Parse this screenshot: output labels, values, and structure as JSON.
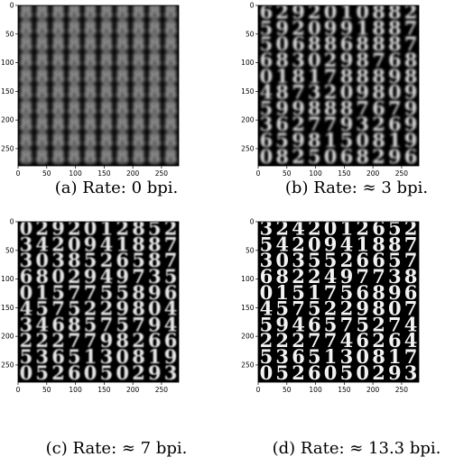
{
  "figure": {
    "axis_ticks_x": [
      "0",
      "50",
      "100",
      "150",
      "200",
      "250"
    ],
    "axis_ticks_y": [
      "0",
      "50",
      "100",
      "150",
      "200",
      "250"
    ],
    "panels": [
      {
        "caption": "(a) Rate: 0 bpi.",
        "blur": 2.4,
        "opacity": 0.85,
        "rows": [
          [
            "8",
            "8",
            "8",
            "8",
            "8",
            "8",
            "8",
            "8",
            "8",
            "8"
          ],
          [
            "8",
            "8",
            "8",
            "8",
            "8",
            "8",
            "8",
            "8",
            "8",
            "8"
          ],
          [
            "8",
            "8",
            "8",
            "8",
            "8",
            "8",
            "8",
            "8",
            "8",
            "8"
          ],
          [
            "8",
            "8",
            "8",
            "8",
            "8",
            "8",
            "8",
            "8",
            "8",
            "8"
          ],
          [
            "8",
            "8",
            "8",
            "8",
            "8",
            "8",
            "8",
            "8",
            "8",
            "8"
          ],
          [
            "8",
            "8",
            "8",
            "8",
            "8",
            "8",
            "8",
            "8",
            "8",
            "8"
          ],
          [
            "8",
            "8",
            "8",
            "8",
            "8",
            "8",
            "8",
            "8",
            "8",
            "8"
          ],
          [
            "8",
            "8",
            "8",
            "8",
            "8",
            "8",
            "8",
            "8",
            "8",
            "8"
          ],
          [
            "8",
            "8",
            "8",
            "8",
            "8",
            "8",
            "8",
            "8",
            "8",
            "8"
          ],
          [
            "8",
            "8",
            "8",
            "8",
            "8",
            "8",
            "8",
            "8",
            "8",
            "8"
          ]
        ]
      },
      {
        "caption": "(b) Rate: ≈ 3 bpi.",
        "blur": 1.3,
        "opacity": 0.85,
        "rows": [
          [
            "6",
            "2",
            "9",
            "2",
            "0",
            "1",
            "0",
            "8",
            "8",
            "2"
          ],
          [
            "5",
            "9",
            "2",
            "0",
            "9",
            "9",
            "1",
            "8",
            "8",
            "7"
          ],
          [
            "5",
            "0",
            "6",
            "8",
            "8",
            "6",
            "8",
            "8",
            "8",
            "7"
          ],
          [
            "6",
            "8",
            "3",
            "0",
            "2",
            "9",
            "8",
            "7",
            "6",
            "8"
          ],
          [
            "0",
            "1",
            "8",
            "1",
            "7",
            "8",
            "8",
            "8",
            "9",
            "8"
          ],
          [
            "4",
            "8",
            "7",
            "3",
            "2",
            "0",
            "9",
            "8",
            "0",
            "9"
          ],
          [
            "5",
            "9",
            "9",
            "8",
            "8",
            "8",
            "7",
            "6",
            "7",
            "9"
          ],
          [
            "3",
            "6",
            "2",
            "7",
            "7",
            "9",
            "3",
            "2",
            "6",
            "9"
          ],
          [
            "6",
            "5",
            "9",
            "8",
            "1",
            "5",
            "0",
            "8",
            "1",
            "9"
          ],
          [
            "0",
            "8",
            "2",
            "5",
            "0",
            "6",
            "8",
            "2",
            "9",
            "6"
          ]
        ]
      },
      {
        "caption": "(c) Rate: ≈ 7 bpi.",
        "blur": 0.7,
        "opacity": 0.9,
        "rows": [
          [
            "0",
            "2",
            "9",
            "2",
            "0",
            "1",
            "2",
            "8",
            "5",
            "2"
          ],
          [
            "3",
            "4",
            "2",
            "0",
            "9",
            "4",
            "1",
            "8",
            "8",
            "7"
          ],
          [
            "3",
            "0",
            "3",
            "8",
            "5",
            "2",
            "6",
            "5",
            "8",
            "7"
          ],
          [
            "6",
            "8",
            "0",
            "2",
            "9",
            "4",
            "9",
            "7",
            "3",
            "5"
          ],
          [
            "0",
            "1",
            "5",
            "7",
            "7",
            "5",
            "5",
            "8",
            "9",
            "6"
          ],
          [
            "4",
            "5",
            "7",
            "5",
            "2",
            "2",
            "9",
            "8",
            "0",
            "4"
          ],
          [
            "3",
            "4",
            "6",
            "8",
            "5",
            "7",
            "5",
            "7",
            "9",
            "4"
          ],
          [
            "2",
            "2",
            "2",
            "7",
            "7",
            "9",
            "8",
            "2",
            "6",
            "6"
          ],
          [
            "5",
            "3",
            "6",
            "5",
            "1",
            "3",
            "0",
            "8",
            "1",
            "9"
          ],
          [
            "0",
            "5",
            "2",
            "6",
            "0",
            "5",
            "0",
            "2",
            "9",
            "3"
          ]
        ]
      },
      {
        "caption": "(d) Rate: ≈ 13.3 bpi.",
        "blur": 0.35,
        "opacity": 0.95,
        "rows": [
          [
            "3",
            "2",
            "4",
            "2",
            "0",
            "1",
            "2",
            "6",
            "5",
            "2"
          ],
          [
            "5",
            "4",
            "2",
            "0",
            "9",
            "4",
            "1",
            "8",
            "8",
            "7"
          ],
          [
            "3",
            "0",
            "3",
            "5",
            "5",
            "2",
            "6",
            "6",
            "5",
            "7"
          ],
          [
            "6",
            "8",
            "2",
            "2",
            "4",
            "9",
            "7",
            "7",
            "3",
            "8"
          ],
          [
            "0",
            "1",
            "5",
            "1",
            "7",
            "5",
            "6",
            "8",
            "9",
            "6"
          ],
          [
            "4",
            "5",
            "7",
            "5",
            "2",
            "2",
            "9",
            "8",
            "0",
            "7"
          ],
          [
            "5",
            "9",
            "4",
            "6",
            "5",
            "7",
            "5",
            "2",
            "7",
            "4"
          ],
          [
            "2",
            "2",
            "2",
            "7",
            "7",
            "4",
            "6",
            "2",
            "6",
            "4"
          ],
          [
            "5",
            "3",
            "6",
            "5",
            "1",
            "3",
            "0",
            "8",
            "1",
            "7"
          ],
          [
            "0",
            "5",
            "2",
            "6",
            "0",
            "5",
            "0",
            "2",
            "9",
            "3"
          ]
        ]
      }
    ]
  }
}
